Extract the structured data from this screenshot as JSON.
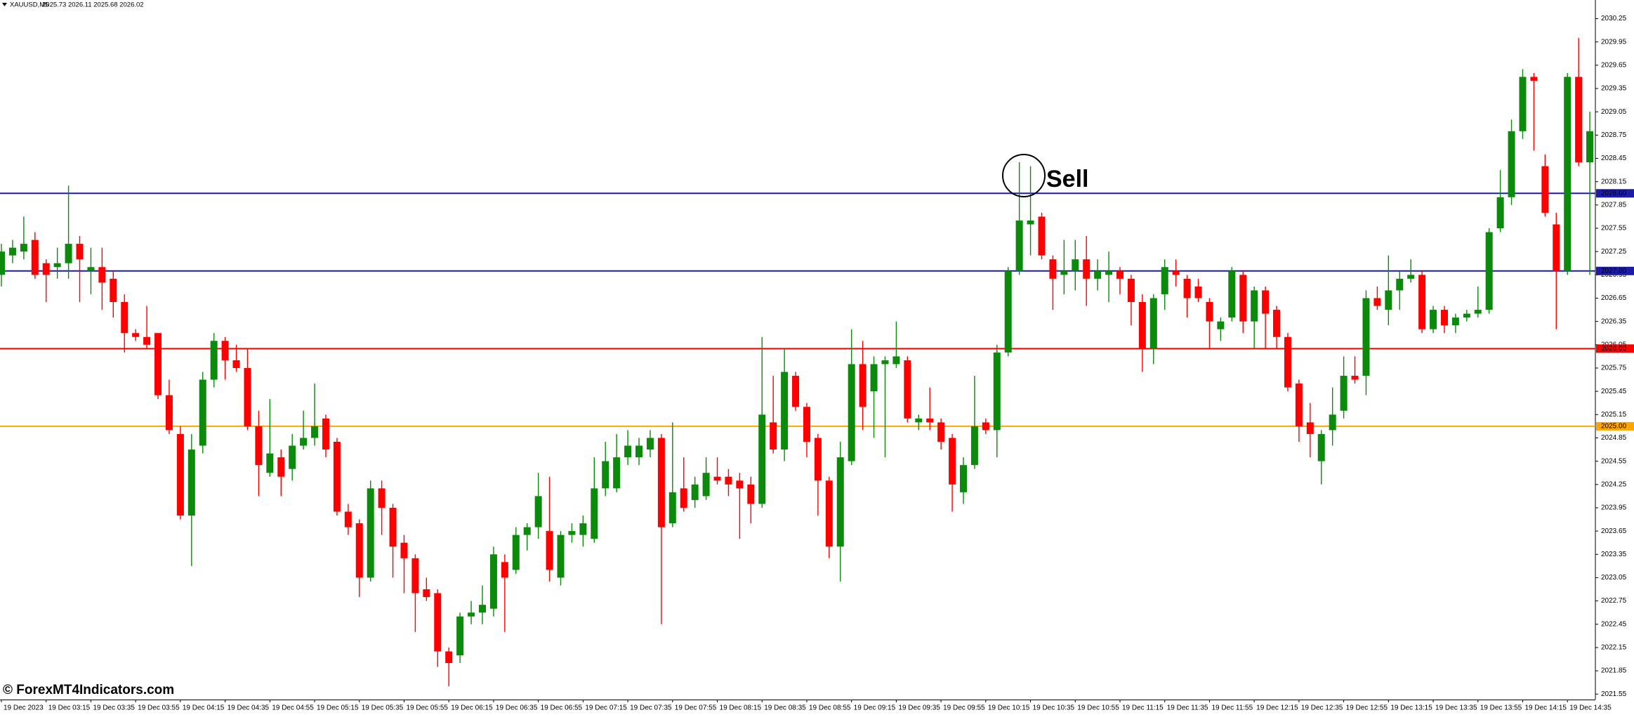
{
  "chart_data": {
    "type": "candlestick",
    "title": "XAUUSD,M5",
    "subtitle": "2025.73 2026.11 2025.68 2026.02",
    "watermark": "© ForexMT4Indicators.com",
    "annotations": [
      {
        "text": "Sell"
      }
    ],
    "up_color": "#0b8a0b",
    "down_color": "#ff0000",
    "ylim": [
      2021.48,
      2030.49
    ],
    "yticks": [
      2030.25,
      2029.95,
      2029.65,
      2029.35,
      2029.05,
      2028.75,
      2028.45,
      2028.15,
      2027.85,
      2027.55,
      2027.25,
      2026.95,
      2026.65,
      2026.35,
      2026.05,
      2025.75,
      2025.45,
      2025.15,
      2024.85,
      2024.55,
      2024.25,
      2023.95,
      2023.65,
      2023.35,
      2023.05,
      2022.75,
      2022.45,
      2022.15,
      2021.85,
      2021.55
    ],
    "levels": [
      {
        "value": 2028,
        "label": "2028.00",
        "color": "#1c1ca8"
      },
      {
        "value": 2027,
        "label": "2027.00",
        "color": "#1c1ca8"
      },
      {
        "value": 2026,
        "label": "2026.00",
        "color": "#ff0000"
      },
      {
        "value": 2025,
        "label": "2025.00",
        "color": "#ffa500"
      }
    ],
    "categories": [
      "19 Dec 2023",
      null,
      null,
      null,
      "19 Dec 03:15",
      null,
      null,
      null,
      "19 Dec 03:35",
      null,
      null,
      null,
      "19 Dec 03:55",
      null,
      null,
      null,
      "19 Dec 04:15",
      null,
      null,
      null,
      "19 Dec 04:35",
      null,
      null,
      null,
      "19 Dec 04:55",
      null,
      null,
      null,
      "19 Dec 05:15",
      null,
      null,
      null,
      "19 Dec 05:35",
      null,
      null,
      null,
      "19 Dec 05:55",
      null,
      null,
      null,
      "19 Dec 06:15",
      null,
      null,
      null,
      "19 Dec 06:35",
      null,
      null,
      null,
      "19 Dec 06:55",
      null,
      null,
      null,
      "19 Dec 07:15",
      null,
      null,
      null,
      "19 Dec 07:35",
      null,
      null,
      null,
      "19 Dec 07:55",
      null,
      null,
      null,
      "19 Dec 08:15",
      null,
      null,
      null,
      "19 Dec 08:35",
      null,
      null,
      null,
      "19 Dec 08:55",
      null,
      null,
      null,
      "19 Dec 09:15",
      null,
      null,
      null,
      "19 Dec 09:35",
      null,
      null,
      null,
      "19 Dec 09:55",
      null,
      null,
      null,
      "19 Dec 10:15",
      null,
      null,
      null,
      "19 Dec 10:35",
      null,
      null,
      null,
      "19 Dec 10:55",
      null,
      null,
      null,
      "19 Dec 11:15",
      null,
      null,
      null,
      "19 Dec 11:35",
      null,
      null,
      null,
      "19 Dec 11:55",
      null,
      null,
      null,
      "19 Dec 12:15",
      null,
      null,
      null,
      "19 Dec 12:35",
      null,
      null,
      null,
      "19 Dec 12:55",
      null,
      null,
      null,
      "19 Dec 13:15",
      null,
      null,
      null,
      "19 Dec 13:35",
      null,
      null,
      null,
      "19 Dec 13:55",
      null,
      null,
      null,
      "19 Dec 14:15",
      null,
      null,
      null,
      "19 Dec 14:35",
      null,
      null
    ],
    "open": [
      2026.95,
      2027.2,
      2027.25,
      2027.4,
      2027.1,
      2027.05,
      2027.1,
      2027.35,
      2027.0,
      2027.05,
      2026.9,
      2026.6,
      2026.2,
      2026.15,
      2026.2,
      2025.4,
      2024.9,
      2023.85,
      2024.75,
      2025.6,
      2026.1,
      2025.85,
      2025.75,
      2025.0,
      2024.4,
      2024.6,
      2024.45,
      2024.75,
      2024.85,
      2025.1,
      2024.8,
      2023.9,
      2023.75,
      2023.05,
      2024.2,
      2023.95,
      2023.5,
      2023.3,
      2022.9,
      2022.85,
      2022.1,
      2022.05,
      2022.55,
      2022.6,
      2022.65,
      2023.25,
      2023.15,
      2023.6,
      2023.7,
      2023.65,
      2023.05,
      2023.6,
      2023.6,
      2023.55,
      2024.2,
      2024.2,
      2024.6,
      2024.6,
      2024.7,
      2024.85,
      2023.75,
      2024.2,
      2024.05,
      2024.1,
      2024.35,
      2024.35,
      2024.3,
      2024.25,
      2024.0,
      2025.05,
      2024.7,
      2025.65,
      2025.25,
      2024.85,
      2024.3,
      2023.45,
      2024.55,
      2025.8,
      2025.45,
      2025.8,
      2025.8,
      2025.85,
      2025.05,
      2025.1,
      2025.05,
      2024.85,
      2024.15,
      2024.5,
      2025.05,
      2024.95,
      2025.95,
      2027.0,
      2027.6,
      2027.7,
      2027.15,
      2026.95,
      2027.0,
      2027.15,
      2026.9,
      2026.95,
      2027.0,
      2026.9,
      2026.6,
      2026.0,
      2026.7,
      2027.0,
      2026.9,
      2026.8,
      2026.6,
      2026.25,
      2026.4,
      2026.95,
      2026.35,
      2026.75,
      2026.5,
      2026.15,
      2025.55,
      2025.05,
      2024.55,
      2024.95,
      2025.2,
      2025.65,
      2025.65,
      2026.65,
      2026.5,
      2026.75,
      2026.9,
      2026.95,
      2026.25,
      2026.5,
      2026.3,
      2026.4,
      2026.45,
      2026.5,
      2027.55,
      2027.95,
      2028.8,
      2029.5,
      2028.35,
      2027.6,
      2027.0,
      2029.5,
      2028.4
    ],
    "high": [
      2027.35,
      2027.4,
      2027.7,
      2027.5,
      2027.15,
      2027.3,
      2028.1,
      2027.45,
      2027.3,
      2027.3,
      2027.0,
      2026.7,
      2026.25,
      2026.55,
      2026.2,
      2025.6,
      2025.0,
      2024.9,
      2025.7,
      2026.2,
      2026.15,
      2026.05,
      2026.0,
      2025.2,
      2025.35,
      2024.7,
      2024.9,
      2025.2,
      2025.55,
      2025.15,
      2024.85,
      2024.0,
      2023.8,
      2024.3,
      2024.3,
      2024.0,
      2023.6,
      2023.35,
      2023.05,
      2022.9,
      2022.15,
      2022.6,
      2022.75,
      2022.95,
      2023.45,
      2023.35,
      2023.7,
      2023.75,
      2024.4,
      2024.35,
      2023.65,
      2023.75,
      2023.85,
      2024.6,
      2024.8,
      2024.9,
      2024.95,
      2024.85,
      2024.95,
      2024.9,
      2025.05,
      2024.6,
      2024.35,
      2024.6,
      2024.6,
      2024.45,
      2024.4,
      2024.35,
      2026.15,
      2025.65,
      2026.0,
      2025.7,
      2025.3,
      2024.9,
      2024.35,
      2024.8,
      2026.25,
      2026.1,
      2025.9,
      2025.9,
      2026.35,
      2025.9,
      2025.15,
      2025.5,
      2025.1,
      2024.9,
      2024.6,
      2025.65,
      2025.1,
      2026.05,
      2027.05,
      2028.4,
      2028.35,
      2027.75,
      2027.2,
      2027.4,
      2027.4,
      2027.45,
      2027.15,
      2027.25,
      2027.05,
      2026.95,
      2026.7,
      2026.7,
      2027.15,
      2027.15,
      2026.95,
      2026.9,
      2026.65,
      2026.4,
      2027.05,
      2027.0,
      2026.8,
      2026.8,
      2026.55,
      2026.2,
      2025.6,
      2025.3,
      2024.95,
      2025.5,
      2025.9,
      2025.9,
      2026.75,
      2026.8,
      2027.2,
      2027.0,
      2027.15,
      2027.0,
      2026.55,
      2026.55,
      2026.45,
      2026.5,
      2026.8,
      2027.55,
      2028.3,
      2028.95,
      2029.6,
      2029.55,
      2028.5,
      2027.75,
      2029.55,
      2030.0,
      2029.05
    ],
    "low": [
      2026.8,
      2027.1,
      2027.15,
      2026.9,
      2026.6,
      2026.9,
      2026.9,
      2026.6,
      2026.7,
      2026.5,
      2026.4,
      2025.95,
      2026.1,
      2026.0,
      2025.35,
      2024.9,
      2023.8,
      2023.2,
      2024.65,
      2025.5,
      2025.6,
      2025.7,
      2024.95,
      2024.1,
      2024.35,
      2024.1,
      2024.3,
      2024.7,
      2024.75,
      2024.6,
      2023.85,
      2023.6,
      2022.8,
      2023.0,
      2023.6,
      2023.05,
      2022.85,
      2022.35,
      2022.75,
      2021.9,
      2021.65,
      2021.95,
      2022.45,
      2022.45,
      2022.55,
      2022.35,
      2023.1,
      2023.4,
      2023.55,
      2023.0,
      2022.95,
      2023.5,
      2023.45,
      2023.5,
      2024.1,
      2024.15,
      2024.5,
      2024.5,
      2024.6,
      2022.45,
      2023.7,
      2023.9,
      2023.95,
      2024.05,
      2024.25,
      2024.1,
      2023.55,
      2023.75,
      2023.95,
      2024.65,
      2024.55,
      2025.2,
      2024.6,
      2023.85,
      2023.3,
      2023.0,
      2024.5,
      2024.95,
      2024.85,
      2024.6,
      2025.75,
      2025.05,
      2024.95,
      2024.95,
      2024.7,
      2023.9,
      2024.0,
      2024.45,
      2024.9,
      2024.6,
      2025.9,
      2026.95,
      2027.2,
      2027.15,
      2026.5,
      2026.7,
      2026.75,
      2026.55,
      2026.75,
      2026.6,
      2026.7,
      2026.3,
      2025.7,
      2025.8,
      2026.5,
      2026.8,
      2026.4,
      2026.6,
      2026.0,
      2026.1,
      2026.35,
      2026.2,
      2026.0,
      2026.0,
      2026.0,
      2025.45,
      2024.8,
      2024.6,
      2024.25,
      2024.75,
      2025.1,
      2025.55,
      2025.4,
      2026.5,
      2026.3,
      2026.5,
      2026.85,
      2026.2,
      2026.2,
      2026.2,
      2026.2,
      2026.35,
      2026.4,
      2026.45,
      2027.5,
      2027.85,
      2028.7,
      2028.55,
      2027.7,
      2026.25,
      2026.95,
      2028.35,
      2026.95
    ],
    "close": [
      2027.25,
      2027.3,
      2027.35,
      2026.95,
      2026.95,
      2027.1,
      2027.35,
      2027.15,
      2027.05,
      2026.85,
      2026.6,
      2026.2,
      2026.15,
      2026.05,
      2025.4,
      2024.95,
      2023.85,
      2024.7,
      2025.6,
      2026.1,
      2025.85,
      2025.75,
      2025.0,
      2024.5,
      2024.65,
      2024.35,
      2024.75,
      2024.85,
      2025.0,
      2024.7,
      2023.9,
      2023.7,
      2023.05,
      2024.2,
      2023.95,
      2023.45,
      2023.3,
      2022.85,
      2022.8,
      2022.1,
      2021.95,
      2022.55,
      2022.6,
      2022.7,
      2023.35,
      2023.05,
      2023.6,
      2023.7,
      2024.1,
      2023.15,
      2023.6,
      2023.65,
      2023.75,
      2024.2,
      2024.55,
      2024.6,
      2024.75,
      2024.75,
      2024.85,
      2023.7,
      2024.15,
      2023.95,
      2024.25,
      2024.4,
      2024.3,
      2024.25,
      2024.2,
      2024.0,
      2025.15,
      2024.7,
      2025.7,
      2025.25,
      2024.8,
      2024.3,
      2023.45,
      2024.6,
      2025.8,
      2025.25,
      2025.8,
      2025.85,
      2025.9,
      2025.1,
      2025.1,
      2025.05,
      2024.8,
      2024.25,
      2024.5,
      2025.0,
      2024.95,
      2025.95,
      2027.0,
      2027.65,
      2027.65,
      2027.2,
      2026.9,
      2027.0,
      2027.15,
      2026.9,
      2027.0,
      2027.0,
      2026.9,
      2026.6,
      2026.0,
      2026.65,
      2027.05,
      2026.95,
      2026.65,
      2026.65,
      2026.35,
      2026.35,
      2027.0,
      2026.35,
      2026.75,
      2026.45,
      2026.15,
      2025.5,
      2025.0,
      2024.9,
      2024.9,
      2025.15,
      2025.65,
      2025.6,
      2026.65,
      2026.55,
      2026.75,
      2026.9,
      2026.95,
      2026.25,
      2026.5,
      2026.3,
      2026.4,
      2026.45,
      2026.5,
      2027.5,
      2027.95,
      2028.8,
      2029.5,
      2029.45,
      2027.75,
      2027.0,
      2029.5,
      2028.4,
      2028.8
    ]
  }
}
